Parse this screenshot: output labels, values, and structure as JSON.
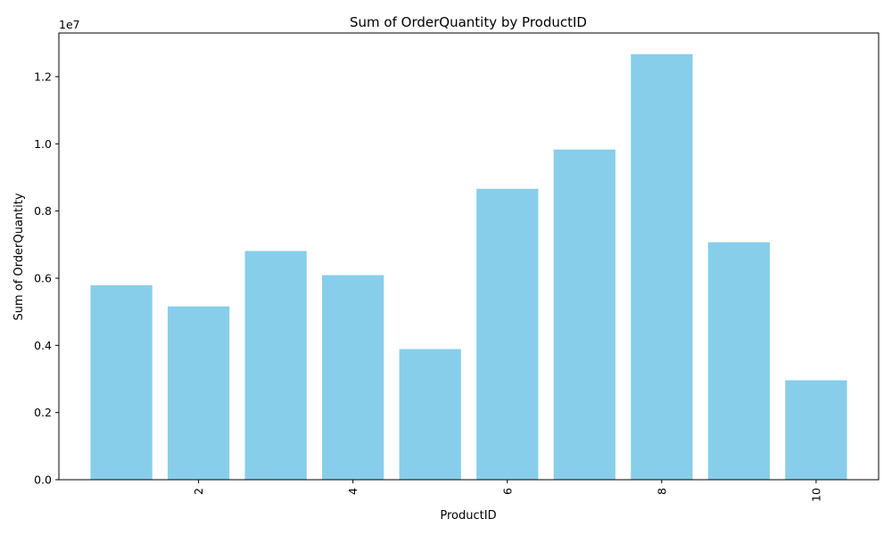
{
  "chart_data": {
    "type": "bar",
    "title": "Sum of OrderQuantity by ProductID",
    "xlabel": "ProductID",
    "ylabel": "Sum of OrderQuantity",
    "y_offset_label": "1e7",
    "categories": [
      1,
      2,
      3,
      4,
      5,
      6,
      7,
      8,
      9,
      10
    ],
    "values": [
      5790000,
      5160000,
      6810000,
      6090000,
      3890000,
      8660000,
      9830000,
      12670000,
      7070000,
      2960000
    ],
    "x_ticks": [
      2,
      4,
      6,
      8,
      10
    ],
    "x_tick_labels": [
      "2",
      "4",
      "6",
      "8",
      "10"
    ],
    "y_ticks": [
      0,
      2000000,
      4000000,
      6000000,
      8000000,
      10000000,
      12000000
    ],
    "y_tick_labels": [
      "0.0",
      "0.2",
      "0.4",
      "0.6",
      "0.8",
      "1.0",
      "1.2"
    ],
    "xlim": [
      0.19,
      10.81
    ],
    "ylim": [
      0,
      13300000
    ],
    "bar_color": "#87ceeb",
    "grid": false,
    "legend": "none"
  }
}
